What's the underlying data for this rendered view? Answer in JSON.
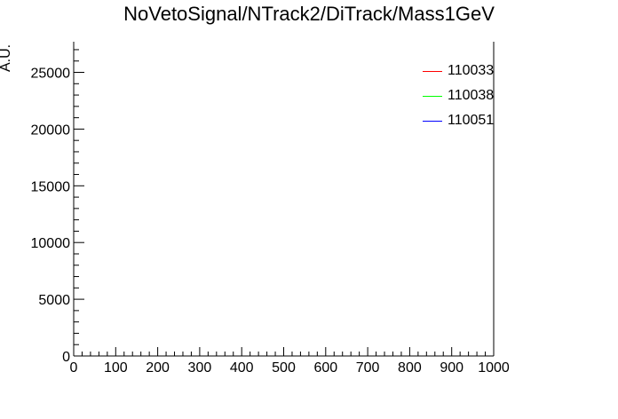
{
  "chart_data": {
    "type": "line",
    "title": "NoVetoSignal/NTrack2/DiTrack/Mass1GeV",
    "xlabel": "",
    "ylabel": "A.U.",
    "xlim": [
      0,
      1000
    ],
    "ylim": [
      0,
      27700
    ],
    "x_ticks": [
      0,
      100,
      200,
      300,
      400,
      500,
      600,
      700,
      800,
      900,
      1000
    ],
    "y_ticks": [
      0,
      5000,
      10000,
      15000,
      20000,
      25000
    ],
    "grid": false,
    "legend_position": "top-right",
    "series": [
      {
        "name": "110033",
        "color": "#ff0000",
        "values": []
      },
      {
        "name": "110038",
        "color": "#00ff00",
        "values": []
      },
      {
        "name": "110051",
        "color": "#0000ff",
        "values": []
      }
    ]
  }
}
